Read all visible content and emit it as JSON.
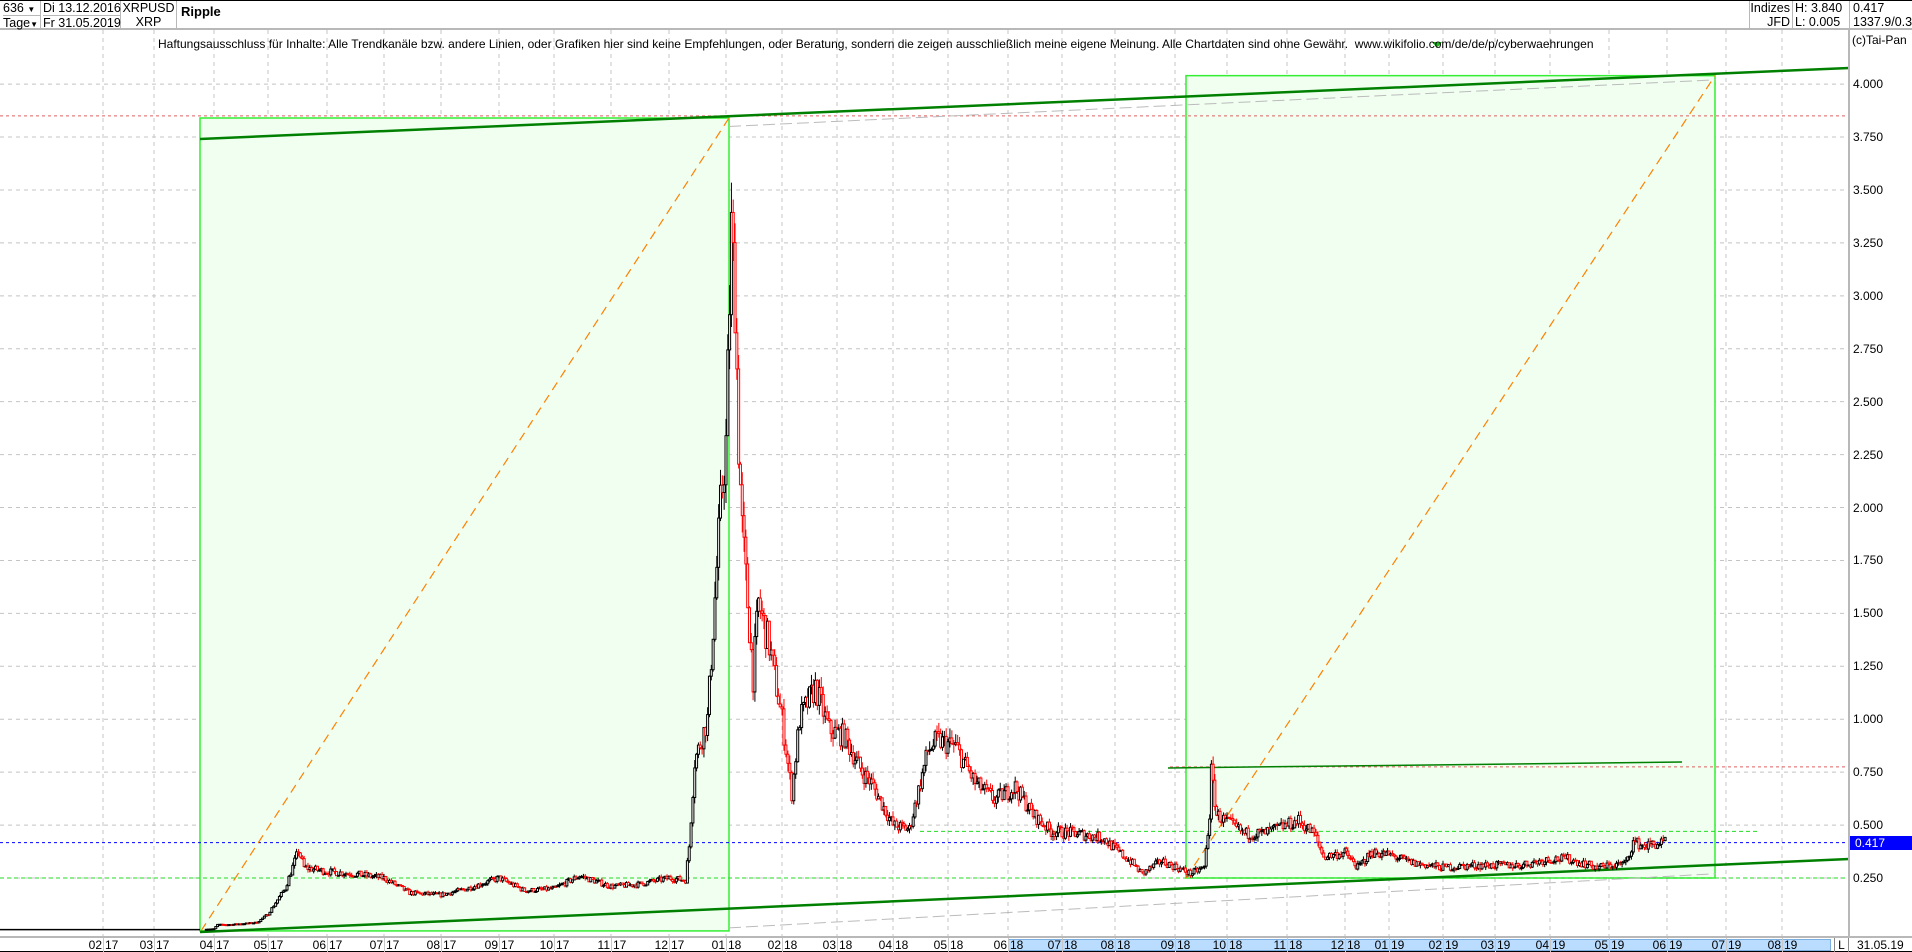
{
  "header": {
    "bars_count": "636",
    "period": "Tage",
    "start_date": "Di 13.12.2016",
    "end_date": "Fr 31.05.2019",
    "symbol": "XRPUSD",
    "symbol_short": "XRP",
    "name": "Ripple",
    "group": "Indizes",
    "source": "JFD",
    "high": "H: 3.840",
    "low": "L: 0.005",
    "last": "0.417",
    "extra": "1337.9/0.3"
  },
  "disclaimer": "Haftungsausschluss für Inhalte: Alle Trendkanäle bzw. andere Linien, oder Grafiken hier sind keine Empfehlungen, oder Beratung, sondern die zeigen ausschließlich meine eigene Meinung. Alle Chartdaten sind ohne Gewähr.  www.wikifolio.com/de/de/p/cyberwaehrungen",
  "copyright": "(c)Tai-Pan",
  "x_axis": {
    "labels": [
      [
        "02",
        "17"
      ],
      [
        "03",
        "17"
      ],
      [
        "04",
        "17"
      ],
      [
        "05",
        "17"
      ],
      [
        "06",
        "17"
      ],
      [
        "07",
        "17"
      ],
      [
        "08",
        "17"
      ],
      [
        "09",
        "17"
      ],
      [
        "10",
        "17"
      ],
      [
        "11",
        "17"
      ],
      [
        "12",
        "17"
      ],
      [
        "01",
        "18"
      ],
      [
        "02",
        "18"
      ],
      [
        "03",
        "18"
      ],
      [
        "04",
        "18"
      ],
      [
        "05",
        "18"
      ],
      [
        "06",
        "18"
      ],
      [
        "07",
        "18"
      ],
      [
        "08",
        "18"
      ],
      [
        "09",
        "18"
      ],
      [
        "10",
        "18"
      ],
      [
        "11",
        "18"
      ],
      [
        "12",
        "18"
      ],
      [
        "01",
        "19"
      ],
      [
        "02",
        "19"
      ],
      [
        "03",
        "19"
      ],
      [
        "04",
        "19"
      ],
      [
        "05",
        "19"
      ],
      [
        "06",
        "19"
      ],
      [
        "07",
        "19"
      ],
      [
        "08",
        "19"
      ]
    ],
    "l_button": "L",
    "cursor_date": "31.05.19"
  },
  "price_axis": {
    "labels": [
      "4.000",
      "3.750",
      "3.500",
      "3.250",
      "3.000",
      "2.750",
      "2.500",
      "2.250",
      "2.000",
      "1.750",
      "1.500",
      "1.250",
      "1.000",
      "0.750",
      "0.500",
      "0.250"
    ],
    "last_label": "0.417"
  },
  "colors": {
    "up_candle": "#000000",
    "down_candle": "#ff0000",
    "trend_channel": "#008000",
    "box_fill": "#f0fff0",
    "box_stroke": "#33ee33",
    "diagonal": "#ff8000",
    "last_price_line": "#0000ff",
    "level_red": "#e06060",
    "level_green": "#22dd22"
  },
  "chart_data": {
    "type": "candlestick",
    "title": "Ripple",
    "x_range": [
      "2016-12-13",
      "2019-05-31"
    ],
    "ylim": [
      0,
      4.05
    ],
    "grid": true,
    "high": 3.84,
    "low": 0.005,
    "last": 0.417,
    "close_keypoints": [
      [
        "2016-12-13",
        0.0065
      ],
      [
        "2017-03-25",
        0.007
      ],
      [
        "2017-04-01",
        0.01
      ],
      [
        "2017-04-03",
        0.03
      ],
      [
        "2017-04-10",
        0.03
      ],
      [
        "2017-04-25",
        0.04
      ],
      [
        "2017-05-01",
        0.08
      ],
      [
        "2017-05-10",
        0.2
      ],
      [
        "2017-05-17",
        0.38
      ],
      [
        "2017-05-20",
        0.3
      ],
      [
        "2017-06-01",
        0.28
      ],
      [
        "2017-06-15",
        0.27
      ],
      [
        "2017-07-01",
        0.25
      ],
      [
        "2017-07-15",
        0.18
      ],
      [
        "2017-08-01",
        0.17
      ],
      [
        "2017-08-15",
        0.2
      ],
      [
        "2017-09-01",
        0.25
      ],
      [
        "2017-09-15",
        0.19
      ],
      [
        "2017-10-01",
        0.2
      ],
      [
        "2017-10-15",
        0.26
      ],
      [
        "2017-11-01",
        0.21
      ],
      [
        "2017-11-15",
        0.22
      ],
      [
        "2017-12-01",
        0.25
      ],
      [
        "2017-12-10",
        0.24
      ],
      [
        "2017-12-12",
        0.4
      ],
      [
        "2017-12-15",
        0.8
      ],
      [
        "2017-12-22",
        1.0
      ],
      [
        "2017-12-29",
        2.0
      ],
      [
        "2018-01-01",
        2.3
      ],
      [
        "2018-01-04",
        3.3
      ],
      [
        "2018-01-06",
        3.0
      ],
      [
        "2018-01-08",
        2.3
      ],
      [
        "2018-01-10",
        1.9
      ],
      [
        "2018-01-16",
        1.2
      ],
      [
        "2018-01-19",
        1.55
      ],
      [
        "2018-01-25",
        1.35
      ],
      [
        "2018-02-01",
        1.0
      ],
      [
        "2018-02-06",
        0.65
      ],
      [
        "2018-02-10",
        1.0
      ],
      [
        "2018-02-18",
        1.15
      ],
      [
        "2018-02-25",
        0.95
      ],
      [
        "2018-03-05",
        0.92
      ],
      [
        "2018-03-15",
        0.75
      ],
      [
        "2018-03-20",
        0.7
      ],
      [
        "2018-04-01",
        0.5
      ],
      [
        "2018-04-10",
        0.48
      ],
      [
        "2018-04-20",
        0.85
      ],
      [
        "2018-04-25",
        0.9
      ],
      [
        "2018-05-05",
        0.87
      ],
      [
        "2018-05-15",
        0.7
      ],
      [
        "2018-05-25",
        0.62
      ],
      [
        "2018-06-05",
        0.68
      ],
      [
        "2018-06-15",
        0.55
      ],
      [
        "2018-06-25",
        0.47
      ],
      [
        "2018-07-10",
        0.46
      ],
      [
        "2018-07-25",
        0.44
      ],
      [
        "2018-08-10",
        0.32
      ],
      [
        "2018-08-15",
        0.27
      ],
      [
        "2018-08-25",
        0.33
      ],
      [
        "2018-09-10",
        0.27
      ],
      [
        "2018-09-18",
        0.3
      ],
      [
        "2018-09-21",
        0.55
      ],
      [
        "2018-09-22",
        0.75
      ],
      [
        "2018-09-25",
        0.55
      ],
      [
        "2018-10-10",
        0.46
      ],
      [
        "2018-10-20",
        0.46
      ],
      [
        "2018-11-07",
        0.52
      ],
      [
        "2018-11-15",
        0.46
      ],
      [
        "2018-11-20",
        0.35
      ],
      [
        "2018-12-01",
        0.37
      ],
      [
        "2018-12-10",
        0.3
      ],
      [
        "2018-12-20",
        0.37
      ],
      [
        "2019-01-01",
        0.36
      ],
      [
        "2019-01-15",
        0.32
      ],
      [
        "2019-02-01",
        0.3
      ],
      [
        "2019-02-20",
        0.31
      ],
      [
        "2019-03-15",
        0.31
      ],
      [
        "2019-04-01",
        0.34
      ],
      [
        "2019-04-10",
        0.34
      ],
      [
        "2019-04-25",
        0.3
      ],
      [
        "2019-05-10",
        0.32
      ],
      [
        "2019-05-14",
        0.42
      ],
      [
        "2019-05-20",
        0.4
      ],
      [
        "2019-05-25",
        0.41
      ],
      [
        "2019-05-31",
        0.417
      ]
    ],
    "levels": {
      "red_upper": 3.85,
      "red_lower": 0.775,
      "green_upper": 0.47,
      "green_lower": 0.25,
      "green_solid": 0.78,
      "last_price": 0.417
    }
  }
}
